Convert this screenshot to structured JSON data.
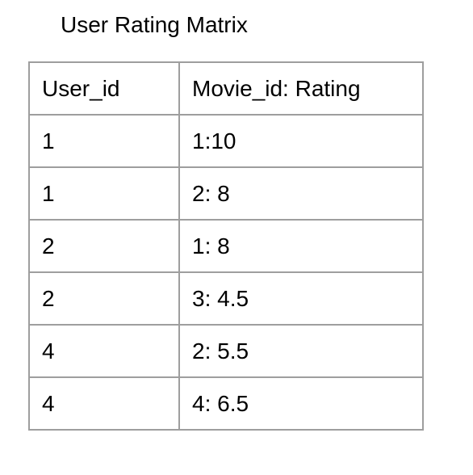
{
  "title": "User Rating Matrix",
  "table": {
    "headers": [
      "User_id",
      "Movie_id: Rating"
    ],
    "rows": [
      [
        "1",
        "1:10"
      ],
      [
        "1",
        "2: 8"
      ],
      [
        "2",
        "1: 8"
      ],
      [
        "2",
        "3: 4.5"
      ],
      [
        "4",
        "2: 5.5"
      ],
      [
        "4",
        "4: 6.5"
      ]
    ]
  }
}
